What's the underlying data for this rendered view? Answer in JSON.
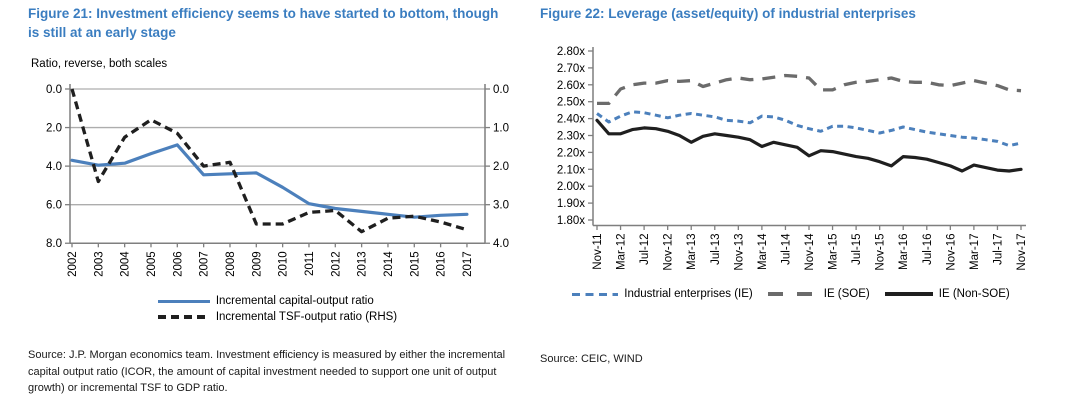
{
  "colors": {
    "title_blue": "#3A7DC0",
    "series_blue": "#4C80BC",
    "series_gray": "#6B6B6B",
    "series_black": "#1F1F1F",
    "gridline": "#ADADAD",
    "axis": "#7F7F7F"
  },
  "sources": {
    "fig21": "Source: J.P. Morgan economics team. Investment efficiency is measured by either the incremental capital output ratio (ICOR, the amount of capital investment needed to support one unit of output growth) or incremental TSF to GDP ratio.",
    "fig22": "Source: CEIC, WIND"
  },
  "chart_data": [
    {
      "type": "line",
      "title": "Figure 21: Investment efficiency seems to have started to bottom, though is still at an early stage",
      "subtitle": "Ratio, reverse, both scales",
      "categories": [
        "2002",
        "2003",
        "2004",
        "2005",
        "2006",
        "2007",
        "2008",
        "2009",
        "2010",
        "2011",
        "2012",
        "2013",
        "2014",
        "2015",
        "2016",
        "2017"
      ],
      "grid": "horizontal",
      "legend_position": "bottom",
      "left_axis": {
        "reversed": true,
        "range": [
          0,
          8
        ],
        "tick_values": [
          0,
          2,
          4,
          6,
          8
        ],
        "tick_labels": [
          "0.0",
          "2.0",
          "4.0",
          "6.0",
          "8.0"
        ]
      },
      "right_axis": {
        "reversed": true,
        "range": [
          0,
          4
        ],
        "tick_values": [
          0,
          1,
          2,
          3,
          4
        ],
        "tick_labels": [
          "0.0",
          "1.0",
          "2.0",
          "3.0",
          "4.0"
        ]
      },
      "series": [
        {
          "name": "Incremental capital-output ratio",
          "axis": "left",
          "line": "solid",
          "color": "#4C80BC",
          "values": [
            3.7,
            3.95,
            3.85,
            3.35,
            2.9,
            4.45,
            4.4,
            4.35,
            5.1,
            5.95,
            6.2,
            6.35,
            6.5,
            6.65,
            6.55,
            6.5
          ]
        },
        {
          "name": "Incremental TSF-output ratio (RHS)",
          "axis": "right",
          "line": "dashed",
          "color": "#1F1F1F",
          "values": [
            0.0,
            2.4,
            1.25,
            0.8,
            1.15,
            2.0,
            1.9,
            3.5,
            3.5,
            3.2,
            3.15,
            3.7,
            3.35,
            3.3,
            3.45,
            3.65
          ]
        }
      ]
    },
    {
      "type": "line",
      "title": "Figure 22: Leverage (asset/equity) of industrial enterprises",
      "grid": "none",
      "legend_position": "bottom",
      "y_axis": {
        "range": [
          1.8,
          2.8
        ],
        "tick_labels": [
          "1.80x",
          "1.90x",
          "2.00x",
          "2.10x",
          "2.20x",
          "2.30x",
          "2.40x",
          "2.50x",
          "2.60x",
          "2.70x",
          "2.80x"
        ]
      },
      "x_tick_labels": [
        "Nov-11",
        "Mar-12",
        "Jul-12",
        "Nov-12",
        "Mar-13",
        "Jul-13",
        "Nov-13",
        "Mar-14",
        "Jul-14",
        "Nov-14",
        "Mar-15",
        "Jul-15",
        "Nov-15",
        "Mar-16",
        "Jul-16",
        "Nov-16",
        "Mar-17",
        "Jul-17",
        "Nov-17"
      ],
      "points_interval_months": 2,
      "series": [
        {
          "name": "Industrial enterprises (IE)",
          "line": "short-dash",
          "color": "#4C80BC",
          "values": [
            2.43,
            2.38,
            2.415,
            2.44,
            2.435,
            2.42,
            2.405,
            2.42,
            2.43,
            2.42,
            2.41,
            2.39,
            2.385,
            2.375,
            2.415,
            2.41,
            2.39,
            2.36,
            2.34,
            2.325,
            2.355,
            2.355,
            2.345,
            2.33,
            2.315,
            2.33,
            2.35,
            2.335,
            2.32,
            2.31,
            2.3,
            2.29,
            2.285,
            2.275,
            2.265,
            2.24,
            2.255
          ]
        },
        {
          "name": "IE (SOE)",
          "line": "long-dash",
          "color": "#6B6B6B",
          "values": [
            2.49,
            2.49,
            2.575,
            2.6,
            2.61,
            2.61,
            2.625,
            2.62,
            2.625,
            2.59,
            2.61,
            2.63,
            2.64,
            2.63,
            2.635,
            2.645,
            2.655,
            2.65,
            2.64,
            2.57,
            2.57,
            2.6,
            2.615,
            2.62,
            2.63,
            2.64,
            2.62,
            2.615,
            2.615,
            2.6,
            2.595,
            2.61,
            2.625,
            2.61,
            2.595,
            2.57,
            2.565
          ]
        },
        {
          "name": "IE (Non-SOE)",
          "line": "solid",
          "color": "#1F1F1F",
          "values": [
            2.39,
            2.31,
            2.31,
            2.335,
            2.345,
            2.34,
            2.325,
            2.3,
            2.26,
            2.295,
            2.31,
            2.3,
            2.29,
            2.275,
            2.235,
            2.26,
            2.245,
            2.23,
            2.18,
            2.21,
            2.205,
            2.19,
            2.175,
            2.165,
            2.145,
            2.12,
            2.175,
            2.17,
            2.16,
            2.14,
            2.12,
            2.09,
            2.125,
            2.11,
            2.095,
            2.09,
            2.1
          ]
        }
      ]
    }
  ]
}
